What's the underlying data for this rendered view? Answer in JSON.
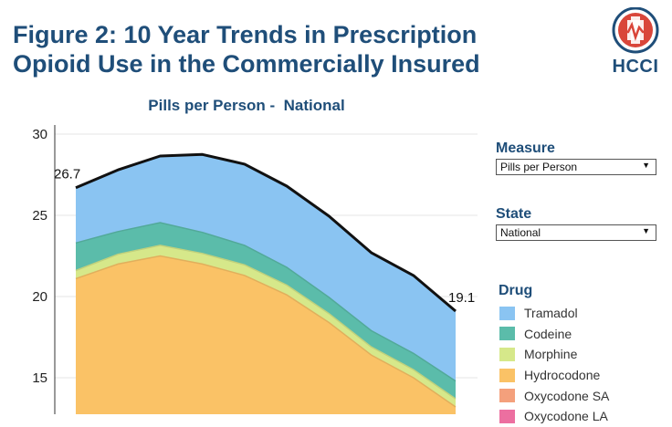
{
  "header": {
    "title_line1": "Figure 2: 10 Year Trends in Prescription",
    "title_line2": "Opioid Use in the Commercially Insured",
    "logo_text": "HCCI"
  },
  "controls": {
    "measure_label": "Measure",
    "measure_value": "Pills per Person",
    "state_label": "State",
    "state_value": "National"
  },
  "chart_data": {
    "type": "area",
    "title": "Pills per Person -  National",
    "ylim": [
      11.5,
      30
    ],
    "yticks": [
      15,
      20,
      25,
      30
    ],
    "x": [
      0,
      1,
      2,
      3,
      4,
      5,
      6,
      7,
      8,
      9
    ],
    "grid": true,
    "legend": {
      "title": "Drug",
      "position": "right"
    },
    "series": [
      {
        "name": "Hydrocodone",
        "color": "#fac266",
        "values": [
          21.1,
          22.0,
          22.5,
          22.0,
          21.3,
          20.1,
          18.4,
          16.4,
          15.0,
          13.2
        ]
      },
      {
        "name": "Morphine",
        "color": "#d6e88a",
        "values": [
          0.5,
          0.6,
          0.65,
          0.65,
          0.65,
          0.6,
          0.55,
          0.5,
          0.5,
          0.5
        ]
      },
      {
        "name": "Codeine",
        "color": "#5bbcaa",
        "values": [
          1.7,
          1.4,
          1.4,
          1.3,
          1.2,
          1.1,
          1.0,
          1.0,
          1.0,
          1.1
        ]
      },
      {
        "name": "Tramadol",
        "color": "#8ac4f2",
        "values": [
          3.4,
          3.8,
          4.1,
          4.8,
          5.0,
          5.0,
          5.0,
          4.8,
          4.8,
          4.3
        ]
      },
      {
        "name": "Oxycodone SA",
        "color": "#f4a07c",
        "values": [
          0,
          0,
          0,
          0,
          0,
          0,
          0,
          0,
          0,
          0
        ]
      },
      {
        "name": "Oxycodone LA",
        "color": "#ec6fa0",
        "values": [
          0,
          0,
          0,
          0,
          0,
          0,
          0,
          0,
          0,
          0
        ]
      }
    ],
    "total": [
      26.7,
      27.8,
      28.65,
      28.75,
      28.15,
      26.8,
      24.95,
      22.7,
      21.3,
      19.1
    ],
    "annotations": [
      {
        "text": "26.7",
        "x": 0,
        "value": 26.7
      },
      {
        "text": "19.1",
        "x": 9,
        "value": 19.1
      }
    ]
  }
}
